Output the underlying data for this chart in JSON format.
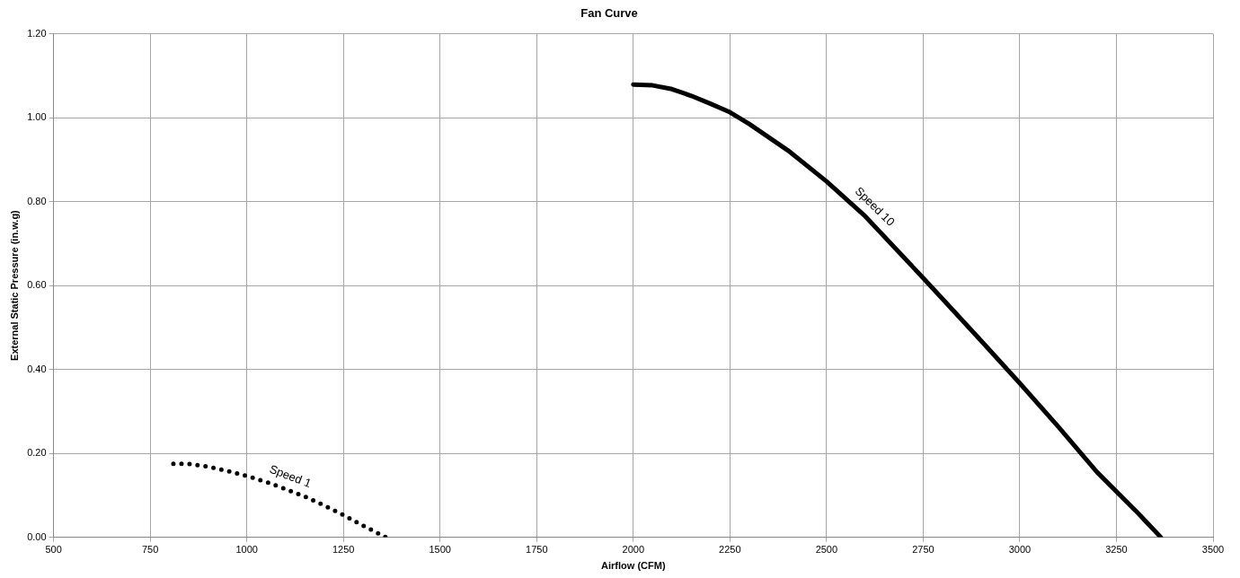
{
  "chart_data": {
    "type": "line",
    "title": "Fan Curve",
    "xlabel": "Airflow (CFM)",
    "ylabel": "External Static Pressure (in.w.g)",
    "xlim": [
      500,
      3500
    ],
    "xticks": [
      500,
      750,
      1000,
      1250,
      1500,
      1750,
      2000,
      2250,
      2500,
      2750,
      3000,
      3250,
      3500
    ],
    "ylim": [
      0,
      1.2
    ],
    "yticks": [
      {
        "value": 0,
        "label": "0.00"
      },
      {
        "value": 0.2,
        "label": "0.20"
      },
      {
        "value": 0.4,
        "label": "0.40"
      },
      {
        "value": 0.6,
        "label": "0.60"
      },
      {
        "value": 0.8,
        "label": "0.80"
      },
      {
        "value": 1,
        "label": "1.00"
      },
      {
        "value": 1.2,
        "label": "1.20"
      }
    ],
    "grid": true,
    "legend": false,
    "marker": "none",
    "series": [
      {
        "name": "Speed 1",
        "color": "#000000",
        "line_style": "dotted",
        "x": [
          810,
          850,
          900,
          950,
          1000,
          1050,
          1100,
          1150,
          1200,
          1250,
          1300,
          1360
        ],
        "values": [
          0.175,
          0.175,
          0.168,
          0.158,
          0.146,
          0.132,
          0.115,
          0.097,
          0.076,
          0.053,
          0.028,
          0
        ]
      },
      {
        "name": "Speed 10",
        "color": "#000000",
        "line_style": "solid",
        "x": [
          2000,
          2050,
          2100,
          2150,
          2200,
          2250,
          2300,
          2400,
          2500,
          2600,
          2700,
          2750,
          2800,
          2900,
          3000,
          3100,
          3200,
          3300,
          3365
        ],
        "values": [
          1.079,
          1.077,
          1.068,
          1.052,
          1.033,
          1.013,
          0.985,
          0.922,
          0.848,
          0.765,
          0.667,
          0.618,
          0.568,
          0.468,
          0.367,
          0.263,
          0.155,
          0.063,
          0
        ]
      }
    ]
  }
}
